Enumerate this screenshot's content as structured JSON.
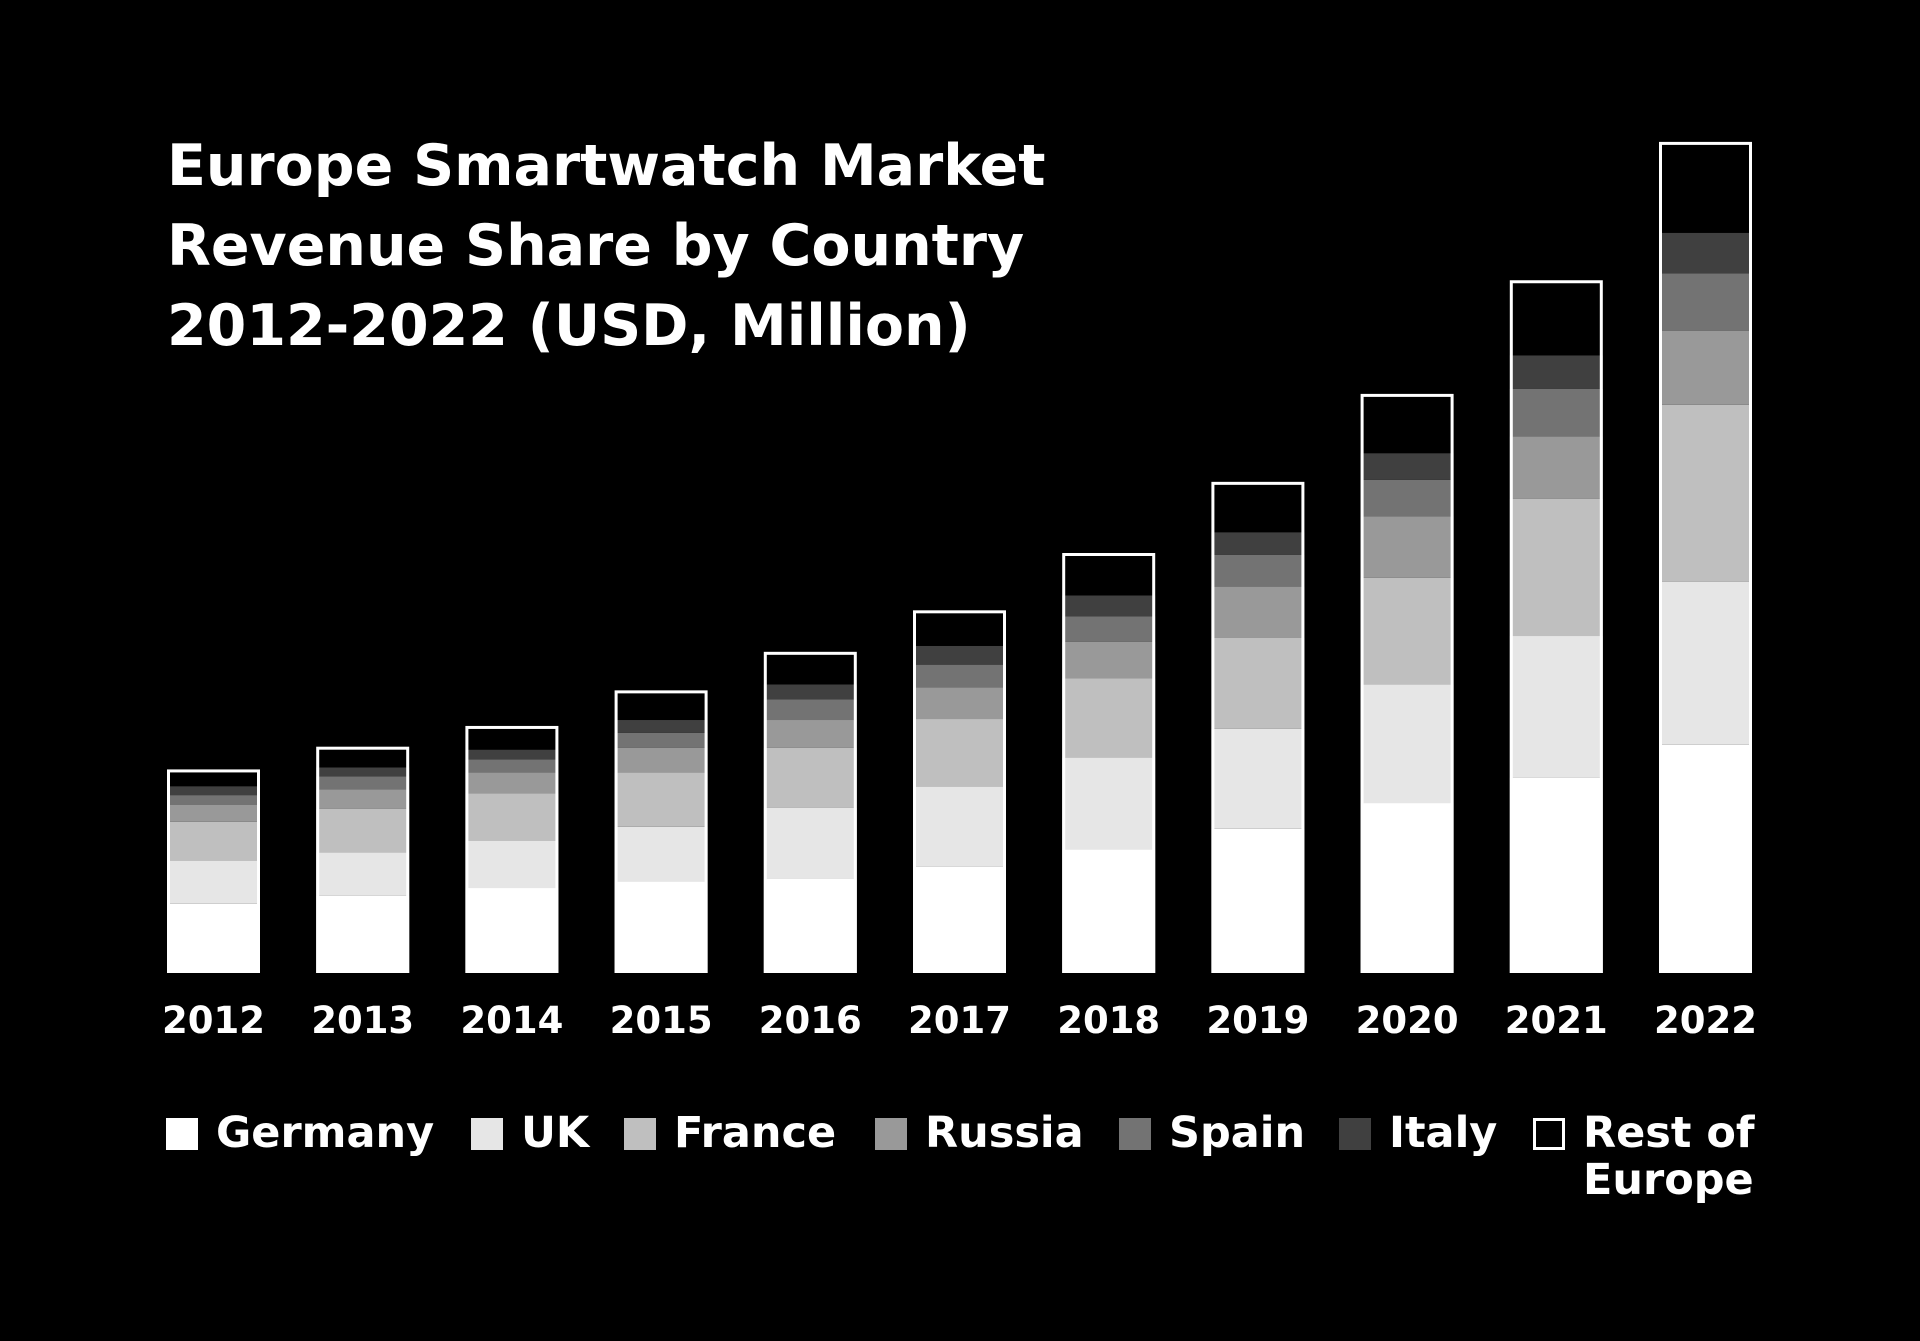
{
  "chart_data": {
    "type": "bar",
    "stacked": true,
    "title_lines": [
      "Europe Smartwatch Market",
      "Revenue Share by Country",
      "2012-2022 (USD, Million)"
    ],
    "xlabel": "",
    "ylabel": "",
    "categories": [
      "2012",
      "2013",
      "2014",
      "2015",
      "2016",
      "2017",
      "2018",
      "2019",
      "2020",
      "2021",
      "2022"
    ],
    "series": [
      {
        "name": "Germany",
        "color": "#ffffff",
        "values": [
          70,
          78,
          86,
          93,
          96,
          108,
          125,
          146,
          172,
          198,
          231
        ]
      },
      {
        "name": "UK",
        "color": "#e6e6e6",
        "values": [
          44,
          44,
          48,
          55,
          71,
          81,
          93,
          101,
          120,
          143,
          165
        ]
      },
      {
        "name": "France",
        "color": "#bfbfbf",
        "values": [
          39,
          44,
          48,
          55,
          61,
          68,
          80,
          92,
          108,
          139,
          179
        ]
      },
      {
        "name": "Russia",
        "color": "#999999",
        "values": [
          17,
          20,
          21,
          25,
          28,
          32,
          37,
          52,
          62,
          63,
          75
        ]
      },
      {
        "name": "Spain",
        "color": "#737373",
        "values": [
          10,
          13,
          13,
          15,
          21,
          23,
          26,
          32,
          37,
          48,
          58
        ]
      },
      {
        "name": "Italy",
        "color": "#404040",
        "values": [
          9,
          9,
          10,
          13,
          15,
          19,
          21,
          23,
          27,
          34,
          41
        ]
      },
      {
        "name": "Rest of Europe",
        "color": "#000000",
        "values": [
          17,
          21,
          24,
          30,
          33,
          36,
          43,
          51,
          60,
          76,
          92
        ]
      }
    ],
    "ylim": [
      0,
      850
    ],
    "grid": false,
    "legend_position": "bottom",
    "bar_outline_color": "#ffffff"
  }
}
